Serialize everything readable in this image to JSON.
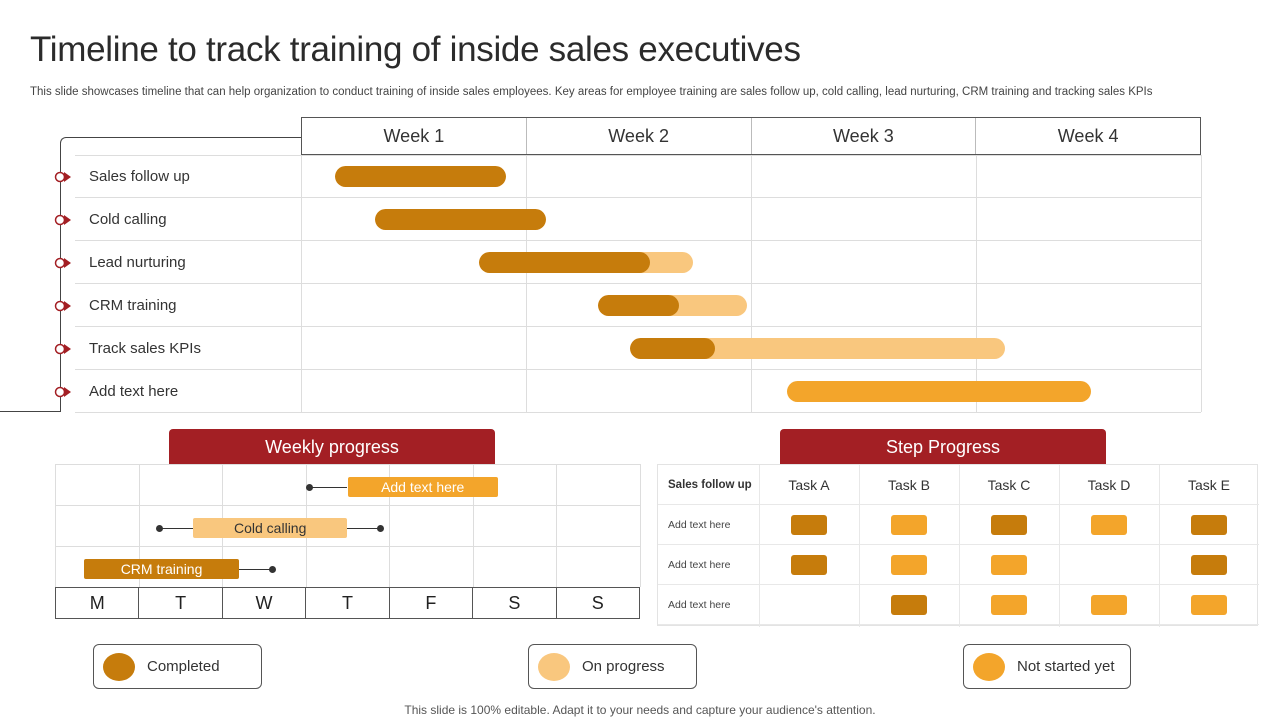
{
  "title": "Timeline to track training of inside sales executives",
  "subtitle": "This slide showcases timeline that can help organization to conduct training of inside sales employees. Key areas for employee training are sales follow up, cold calling, lead nurturing, CRM training and tracking sales KPIs",
  "colors": {
    "completed": "#c67c0c",
    "on_progress": "#f9c77e",
    "not_started": "#f3a52b",
    "header_red": "#a31f24",
    "marker_red": "#a31f24"
  },
  "gantt": {
    "weeks": [
      "Week 1",
      "Week 2",
      "Week 3",
      "Week 4"
    ],
    "tasks": [
      {
        "label": "Sales follow up",
        "start": 0.15,
        "end": 0.91,
        "completed_end": 0.91,
        "status": "completed"
      },
      {
        "label": "Cold calling",
        "start": 0.33,
        "end": 1.09,
        "completed_end": 1.09,
        "status": "completed"
      },
      {
        "label": "Lead nurturing",
        "start": 0.79,
        "end": 1.74,
        "completed_end": 1.55,
        "status": "on_progress"
      },
      {
        "label": "CRM training",
        "start": 1.32,
        "end": 1.98,
        "completed_end": 1.68,
        "status": "on_progress"
      },
      {
        "label": "Track sales KPIs",
        "start": 1.46,
        "end": 3.13,
        "completed_end": 1.84,
        "status": "on_progress"
      },
      {
        "label": "Add text here",
        "start": 2.16,
        "end": 3.51,
        "completed_end": 2.16,
        "status": "not_started"
      }
    ]
  },
  "weekly_progress": {
    "header": "Weekly progress",
    "days": [
      "M",
      "T",
      "W",
      "T",
      "F",
      "S",
      "S"
    ],
    "bars": [
      {
        "label": "Add text here",
        "start": 3.5,
        "end": 5.3,
        "status": "not_started",
        "line_from": 3.05,
        "line_to": 3.5
      },
      {
        "label": "Cold calling",
        "start": 1.65,
        "end": 3.5,
        "status": "on_progress",
        "line_from": 1.25,
        "line_to": 3.9
      },
      {
        "label": "CRM training",
        "start": 0.35,
        "end": 2.2,
        "status": "completed",
        "line_from": 2.2,
        "line_to": 2.6
      }
    ]
  },
  "step_progress": {
    "header": "Step Progress",
    "corner": "Sales follow up",
    "tasks": [
      "Task A",
      "Task B",
      "Task C",
      "Task D",
      "Task E"
    ],
    "rows": [
      {
        "label": "Add text here",
        "cells": [
          "completed",
          "not_started",
          "completed",
          "not_started",
          "completed"
        ]
      },
      {
        "label": "Add text here",
        "cells": [
          "completed",
          "not_started",
          "not_started",
          "",
          "completed"
        ]
      },
      {
        "label": "Add text here",
        "cells": [
          "",
          "completed",
          "not_started",
          "not_started",
          "not_started"
        ]
      }
    ]
  },
  "legend": [
    {
      "label": "Completed",
      "status": "completed"
    },
    {
      "label": "On progress",
      "status": "on_progress"
    },
    {
      "label": "Not started yet",
      "status": "not_started"
    }
  ],
  "footer": "This slide is 100% editable. Adapt it to your needs and capture your audience's attention."
}
